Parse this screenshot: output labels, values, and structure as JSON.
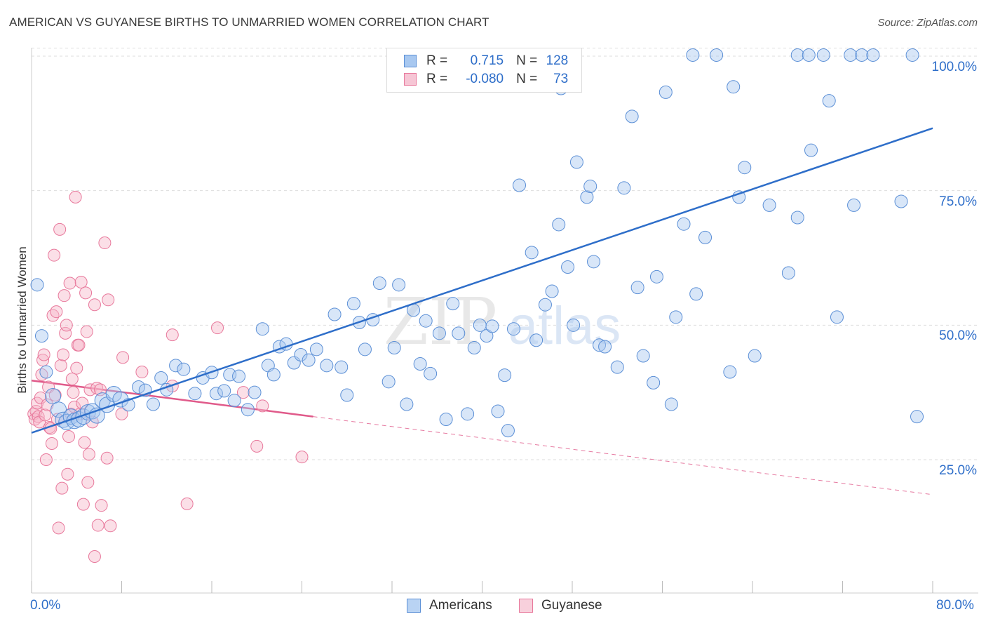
{
  "title": "AMERICAN VS GUYANESE BIRTHS TO UNMARRIED WOMEN CORRELATION CHART",
  "source": "Source: ZipAtlas.com",
  "watermark": {
    "zip": "ZIP",
    "atlas": "atlas"
  },
  "colors": {
    "blue_fill": "#a8c8f0",
    "blue_stroke": "#5b8fd6",
    "blue_line": "#2e6ec9",
    "pink_fill": "#f6b8ca",
    "pink_stroke": "#e8799c",
    "pink_line": "#e05a8a",
    "axis_text": "#2e6ec9",
    "grid": "#dddddd"
  },
  "legend": {
    "rows": [
      {
        "r_label": "R =",
        "r_value": "0.715",
        "n_label": "N =",
        "n_value": "128",
        "swatch": "blue"
      },
      {
        "r_label": "R =",
        "r_value": "-0.080",
        "n_label": "N =",
        "n_value": "73",
        "swatch": "pink"
      }
    ]
  },
  "bottom_legend": [
    {
      "label": "Americans",
      "swatch": "blue"
    },
    {
      "label": "Guyanese",
      "swatch": "pink"
    }
  ],
  "chart_data": {
    "type": "scatter",
    "title": "AMERICAN VS GUYANESE BIRTHS TO UNMARRIED WOMEN CORRELATION CHART",
    "xlabel": "",
    "ylabel": "Births to Unmarried Women",
    "xlim": [
      0,
      80
    ],
    "ylim": [
      0,
      102
    ],
    "x_tick_labels": [
      "0.0%",
      "80.0%"
    ],
    "y_tick_labels": [
      "25.0%",
      "50.0%",
      "75.0%",
      "100.0%"
    ],
    "y_ticks": [
      25,
      50,
      75,
      100
    ],
    "x_minor_ticks": [
      0,
      8,
      16,
      24,
      32,
      40,
      48,
      56,
      64,
      72,
      80
    ],
    "grid": true,
    "legend_position": "top-center",
    "series": [
      {
        "name": "Americans",
        "color": "#5b8fd6",
        "trend": {
          "x": [
            0,
            80
          ],
          "y": [
            30.0,
            86.6
          ]
        },
        "points": [
          [
            0.5,
            57.5
          ],
          [
            0.9,
            48.0
          ],
          [
            1.3,
            41.3
          ],
          [
            1.9,
            36.8
          ],
          [
            2.4,
            34.3
          ],
          [
            2.8,
            32.4
          ],
          [
            3.1,
            32.0
          ],
          [
            3.5,
            33.0
          ],
          [
            3.8,
            32.2
          ],
          [
            4.2,
            32.5
          ],
          [
            4.6,
            33.0
          ],
          [
            5.0,
            33.8
          ],
          [
            5.4,
            34.0
          ],
          [
            5.8,
            33.2
          ],
          [
            6.3,
            36.0
          ],
          [
            6.7,
            35.2
          ],
          [
            7.3,
            37.2
          ],
          [
            7.9,
            36.2
          ],
          [
            8.6,
            35.2
          ],
          [
            9.5,
            38.5
          ],
          [
            10.1,
            37.9
          ],
          [
            10.8,
            35.3
          ],
          [
            11.5,
            40.2
          ],
          [
            12.0,
            38.0
          ],
          [
            12.8,
            42.5
          ],
          [
            13.5,
            41.8
          ],
          [
            14.5,
            37.3
          ],
          [
            15.2,
            40.2
          ],
          [
            16.0,
            41.2
          ],
          [
            16.4,
            37.3
          ],
          [
            17.1,
            37.8
          ],
          [
            17.6,
            40.8
          ],
          [
            18.0,
            36.0
          ],
          [
            18.4,
            40.5
          ],
          [
            19.2,
            34.3
          ],
          [
            19.8,
            37.5
          ],
          [
            20.5,
            49.3
          ],
          [
            21.0,
            42.5
          ],
          [
            21.5,
            40.8
          ],
          [
            22.0,
            46.0
          ],
          [
            22.6,
            46.5
          ],
          [
            23.3,
            43.0
          ],
          [
            23.9,
            44.5
          ],
          [
            24.6,
            43.5
          ],
          [
            25.3,
            45.5
          ],
          [
            26.2,
            42.5
          ],
          [
            26.9,
            52.0
          ],
          [
            27.5,
            42.2
          ],
          [
            28.0,
            37.0
          ],
          [
            28.6,
            54.0
          ],
          [
            29.1,
            50.5
          ],
          [
            29.6,
            45.5
          ],
          [
            30.3,
            51.0
          ],
          [
            30.9,
            57.8
          ],
          [
            31.7,
            39.5
          ],
          [
            32.2,
            45.8
          ],
          [
            32.6,
            57.5
          ],
          [
            33.3,
            35.3
          ],
          [
            33.9,
            52.8
          ],
          [
            34.5,
            42.8
          ],
          [
            35.0,
            50.8
          ],
          [
            35.4,
            41.0
          ],
          [
            36.2,
            48.5
          ],
          [
            36.8,
            32.5
          ],
          [
            37.4,
            54.0
          ],
          [
            37.9,
            48.5
          ],
          [
            38.7,
            33.5
          ],
          [
            39.3,
            45.8
          ],
          [
            39.8,
            50.0
          ],
          [
            40.4,
            48.0
          ],
          [
            40.9,
            49.8
          ],
          [
            41.4,
            34.0
          ],
          [
            42.0,
            40.7
          ],
          [
            42.3,
            30.4
          ],
          [
            42.8,
            49.3
          ],
          [
            43.3,
            76.0
          ],
          [
            44.4,
            63.5
          ],
          [
            44.8,
            47.2
          ],
          [
            45.6,
            53.8
          ],
          [
            46.2,
            56.3
          ],
          [
            46.8,
            68.7
          ],
          [
            47.0,
            94.0
          ],
          [
            47.6,
            60.8
          ],
          [
            48.1,
            50.0
          ],
          [
            48.4,
            80.3
          ],
          [
            49.3,
            73.8
          ],
          [
            49.6,
            75.8
          ],
          [
            49.9,
            61.8
          ],
          [
            50.4,
            46.3
          ],
          [
            50.9,
            46.0
          ],
          [
            52.0,
            42.2
          ],
          [
            52.6,
            75.5
          ],
          [
            53.3,
            88.8
          ],
          [
            53.8,
            57.0
          ],
          [
            54.3,
            44.3
          ],
          [
            55.2,
            39.3
          ],
          [
            55.5,
            59.0
          ],
          [
            56.3,
            93.3
          ],
          [
            56.8,
            35.3
          ],
          [
            57.2,
            51.5
          ],
          [
            57.9,
            68.8
          ],
          [
            58.7,
            100.2
          ],
          [
            59.0,
            55.8
          ],
          [
            59.8,
            66.3
          ],
          [
            60.8,
            100.2
          ],
          [
            62.0,
            41.3
          ],
          [
            62.3,
            94.3
          ],
          [
            62.8,
            73.8
          ],
          [
            63.3,
            79.3
          ],
          [
            64.2,
            44.3
          ],
          [
            65.5,
            72.3
          ],
          [
            67.2,
            59.7
          ],
          [
            68.0,
            70.0
          ],
          [
            68.0,
            100.2
          ],
          [
            69.0,
            100.2
          ],
          [
            69.2,
            82.5
          ],
          [
            70.3,
            100.2
          ],
          [
            70.8,
            91.7
          ],
          [
            71.5,
            51.5
          ],
          [
            72.7,
            100.2
          ],
          [
            73.0,
            72.3
          ],
          [
            73.7,
            100.2
          ],
          [
            74.7,
            100.2
          ],
          [
            77.2,
            73.0
          ],
          [
            78.2,
            100.2
          ],
          [
            78.6,
            33.0
          ]
        ]
      },
      {
        "name": "Guyanese",
        "color": "#e8799c",
        "trend": {
          "x": [
            0,
            25,
            80
          ],
          "y": [
            39.7,
            33.0,
            18.5
          ]
        },
        "points": [
          [
            0.2,
            33.5
          ],
          [
            0.3,
            32.5
          ],
          [
            0.4,
            34.0
          ],
          [
            0.5,
            35.5
          ],
          [
            0.6,
            33.0
          ],
          [
            0.7,
            32.0
          ],
          [
            0.8,
            36.5
          ],
          [
            0.9,
            40.8
          ],
          [
            1.0,
            43.5
          ],
          [
            1.1,
            44.5
          ],
          [
            1.2,
            33.3
          ],
          [
            1.3,
            25.0
          ],
          [
            1.4,
            35.2
          ],
          [
            1.5,
            38.5
          ],
          [
            1.6,
            31.0
          ],
          [
            1.7,
            30.8
          ],
          [
            1.8,
            28.0
          ],
          [
            1.9,
            51.8
          ],
          [
            2.0,
            63.0
          ],
          [
            2.1,
            37.0
          ],
          [
            2.2,
            52.5
          ],
          [
            2.3,
            32.5
          ],
          [
            2.4,
            12.3
          ],
          [
            2.5,
            67.8
          ],
          [
            2.6,
            42.5
          ],
          [
            2.7,
            19.7
          ],
          [
            2.8,
            44.5
          ],
          [
            2.9,
            55.5
          ],
          [
            3.0,
            48.5
          ],
          [
            3.1,
            50.0
          ],
          [
            3.2,
            22.3
          ],
          [
            3.3,
            29.3
          ],
          [
            3.4,
            57.8
          ],
          [
            3.5,
            33.5
          ],
          [
            3.6,
            40.0
          ],
          [
            3.7,
            37.5
          ],
          [
            3.8,
            34.8
          ],
          [
            3.9,
            73.8
          ],
          [
            4.0,
            42.0
          ],
          [
            4.1,
            46.3
          ],
          [
            4.2,
            46.3
          ],
          [
            4.3,
            33.5
          ],
          [
            4.4,
            58.0
          ],
          [
            4.5,
            35.5
          ],
          [
            4.6,
            16.7
          ],
          [
            4.7,
            28.2
          ],
          [
            4.8,
            56.0
          ],
          [
            4.9,
            48.8
          ],
          [
            5.0,
            20.8
          ],
          [
            5.1,
            26.0
          ],
          [
            5.2,
            38.0
          ],
          [
            5.4,
            32.0
          ],
          [
            5.6,
            53.8
          ],
          [
            5.8,
            38.3
          ],
          [
            5.6,
            7.0
          ],
          [
            5.9,
            12.8
          ],
          [
            6.1,
            38.0
          ],
          [
            6.2,
            16.5
          ],
          [
            6.5,
            65.3
          ],
          [
            6.7,
            25.3
          ],
          [
            6.8,
            54.7
          ],
          [
            7.0,
            12.7
          ],
          [
            8.0,
            33.5
          ],
          [
            8.1,
            44.0
          ],
          [
            9.8,
            41.3
          ],
          [
            12.5,
            48.2
          ],
          [
            12.5,
            38.7
          ],
          [
            13.8,
            16.8
          ],
          [
            16.5,
            49.5
          ],
          [
            18.8,
            37.5
          ],
          [
            20.0,
            27.5
          ],
          [
            20.5,
            35.0
          ],
          [
            24.0,
            25.5
          ]
        ]
      }
    ]
  }
}
